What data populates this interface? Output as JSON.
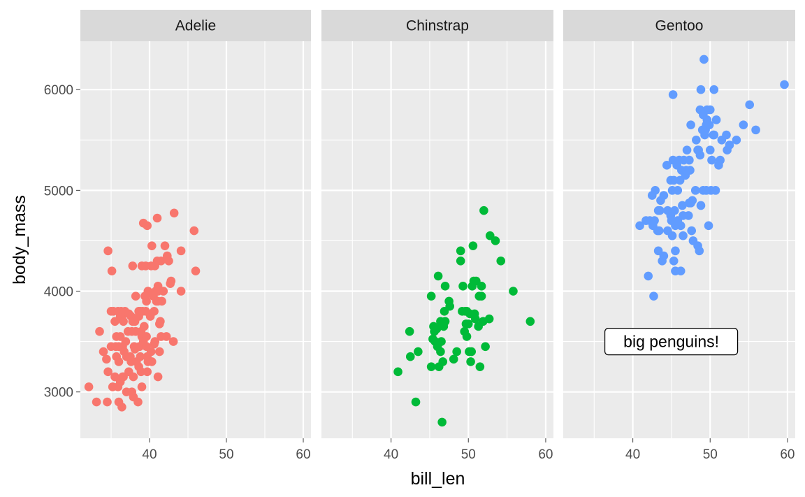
{
  "chart_data": {
    "type": "scatter",
    "xlabel": "bill_len",
    "ylabel": "body_mass",
    "xlim": [
      31,
      61
    ],
    "ylim": [
      2540,
      6480
    ],
    "x_ticks": [
      40,
      50,
      60
    ],
    "x_minor": [
      35,
      45,
      55
    ],
    "y_ticks": [
      3000,
      4000,
      5000,
      6000
    ],
    "y_minor": [
      3500,
      4500,
      5500
    ],
    "grid": true,
    "legend": "none",
    "colors": {
      "Adelie": "#f8766d",
      "Chinstrap": "#00ba38",
      "Gentoo": "#619cff"
    },
    "facets": [
      {
        "name": "Adelie",
        "points": [
          [
            32.1,
            3050
          ],
          [
            33.1,
            2900
          ],
          [
            33.5,
            3600
          ],
          [
            34.0,
            3400
          ],
          [
            34.4,
            3325
          ],
          [
            34.5,
            2900
          ],
          [
            34.6,
            3200
          ],
          [
            34.6,
            4400
          ],
          [
            35.0,
            3450
          ],
          [
            35.0,
            3800
          ],
          [
            35.1,
            4200
          ],
          [
            35.2,
            3050
          ],
          [
            35.3,
            3800
          ],
          [
            35.5,
            3700
          ],
          [
            35.5,
            3150
          ],
          [
            35.6,
            3450
          ],
          [
            35.7,
            3350
          ],
          [
            35.7,
            3550
          ],
          [
            35.9,
            3050
          ],
          [
            35.9,
            3800
          ],
          [
            36.0,
            3300
          ],
          [
            36.0,
            2900
          ],
          [
            36.0,
            3450
          ],
          [
            36.2,
            3100
          ],
          [
            36.2,
            3550
          ],
          [
            36.2,
            3750
          ],
          [
            36.3,
            3800
          ],
          [
            36.4,
            2850
          ],
          [
            36.4,
            3750
          ],
          [
            36.5,
            3150
          ],
          [
            36.5,
            3450
          ],
          [
            36.6,
            3150
          ],
          [
            36.7,
            3400
          ],
          [
            36.8,
            3800
          ],
          [
            36.9,
            3500
          ],
          [
            37.0,
            3000
          ],
          [
            37.0,
            3350
          ],
          [
            37.2,
            3600
          ],
          [
            37.3,
            3200
          ],
          [
            37.3,
            3775
          ],
          [
            37.6,
            3300
          ],
          [
            37.6,
            3750
          ],
          [
            37.7,
            3600
          ],
          [
            37.7,
            3000
          ],
          [
            37.8,
            3700
          ],
          [
            37.8,
            4250
          ],
          [
            37.9,
            3150
          ],
          [
            37.9,
            2950
          ],
          [
            38.1,
            3700
          ],
          [
            38.1,
            3425
          ],
          [
            38.2,
            3950
          ],
          [
            38.2,
            3600
          ],
          [
            38.3,
            3300
          ],
          [
            38.5,
            2900
          ],
          [
            38.6,
            3800
          ],
          [
            38.6,
            3750
          ],
          [
            38.6,
            3250
          ],
          [
            38.7,
            3450
          ],
          [
            38.8,
            3800
          ],
          [
            38.8,
            3350
          ],
          [
            38.9,
            3200
          ],
          [
            38.9,
            3600
          ],
          [
            39.0,
            3050
          ],
          [
            39.0,
            3550
          ],
          [
            39.0,
            4250
          ],
          [
            39.1,
            3800
          ],
          [
            39.2,
            4675
          ],
          [
            39.2,
            3500
          ],
          [
            39.3,
            3650
          ],
          [
            39.5,
            3800
          ],
          [
            39.5,
            4250
          ],
          [
            39.6,
            3550
          ],
          [
            39.6,
            3900
          ],
          [
            39.6,
            3450
          ],
          [
            39.7,
            4650
          ],
          [
            39.7,
            3200
          ],
          [
            39.7,
            3350
          ],
          [
            39.8,
            4000
          ],
          [
            39.8,
            3300
          ],
          [
            40.1,
            3750
          ],
          [
            40.2,
            3400
          ],
          [
            40.2,
            4250
          ],
          [
            40.3,
            3300
          ],
          [
            40.5,
            3950
          ],
          [
            40.6,
            3475
          ],
          [
            40.6,
            3800
          ],
          [
            40.7,
            3500
          ],
          [
            40.8,
            4000
          ],
          [
            40.9,
            3900
          ],
          [
            41.0,
            4300
          ],
          [
            41.1,
            3900
          ],
          [
            41.1,
            4000
          ],
          [
            41.1,
            3150
          ],
          [
            41.1,
            4050
          ],
          [
            41.3,
            3675
          ],
          [
            41.4,
            3700
          ],
          [
            41.5,
            4300
          ],
          [
            41.5,
            3550
          ],
          [
            41.6,
            3900
          ],
          [
            41.8,
            4000
          ],
          [
            42.0,
            4450
          ],
          [
            42.2,
            3550
          ],
          [
            42.3,
            4350
          ],
          [
            42.5,
            4300
          ],
          [
            42.8,
            4100
          ],
          [
            43.1,
            3500
          ],
          [
            43.2,
            4775
          ],
          [
            44.1,
            4000
          ],
          [
            44.1,
            4400
          ],
          [
            45.8,
            4600
          ],
          [
            46.0,
            4200
          ],
          [
            41.0,
            4725
          ],
          [
            40.3,
            4450
          ],
          [
            41.3,
            3400
          ],
          [
            38.0,
            3450
          ],
          [
            39.4,
            3950
          ],
          [
            36.6,
            3700
          ],
          [
            37.5,
            3350
          ],
          [
            42.7,
            4075
          ],
          [
            40.7,
            4250
          ]
        ]
      },
      {
        "name": "Chinstrap",
        "points": [
          [
            40.9,
            3200
          ],
          [
            42.4,
            3600
          ],
          [
            42.5,
            3350
          ],
          [
            43.2,
            2900
          ],
          [
            43.5,
            3400
          ],
          [
            45.2,
            3250
          ],
          [
            45.2,
            3950
          ],
          [
            45.4,
            3525
          ],
          [
            45.5,
            3650
          ],
          [
            45.6,
            3600
          ],
          [
            45.7,
            3500
          ],
          [
            45.9,
            3625
          ],
          [
            46.0,
            3450
          ],
          [
            46.1,
            4150
          ],
          [
            46.2,
            3250
          ],
          [
            46.4,
            3700
          ],
          [
            46.5,
            3500
          ],
          [
            46.6,
            2700
          ],
          [
            46.7,
            3300
          ],
          [
            46.8,
            3650
          ],
          [
            46.9,
            3800
          ],
          [
            47.0,
            3700
          ],
          [
            47.5,
            3900
          ],
          [
            47.6,
            3850
          ],
          [
            48.1,
            3325
          ],
          [
            48.5,
            3400
          ],
          [
            49.0,
            4300
          ],
          [
            49.0,
            4400
          ],
          [
            49.2,
            3800
          ],
          [
            49.3,
            4050
          ],
          [
            49.5,
            3600
          ],
          [
            49.6,
            3800
          ],
          [
            49.7,
            3675
          ],
          [
            49.8,
            3800
          ],
          [
            50.0,
            3675
          ],
          [
            50.1,
            3400
          ],
          [
            50.2,
            3775
          ],
          [
            50.3,
            3300
          ],
          [
            50.5,
            4050
          ],
          [
            50.6,
            4450
          ],
          [
            50.7,
            4100
          ],
          [
            50.8,
            3775
          ],
          [
            50.9,
            3725
          ],
          [
            51.0,
            4100
          ],
          [
            51.3,
            3650
          ],
          [
            51.4,
            3950
          ],
          [
            51.5,
            3250
          ],
          [
            51.7,
            3950
          ],
          [
            51.9,
            3700
          ],
          [
            52.0,
            4800
          ],
          [
            52.2,
            3450
          ],
          [
            52.7,
            3725
          ],
          [
            52.8,
            4550
          ],
          [
            53.5,
            4500
          ],
          [
            54.2,
            4300
          ],
          [
            55.8,
            4000
          ],
          [
            58.0,
            3700
          ],
          [
            50.4,
            3400
          ],
          [
            49.8,
            3550
          ],
          [
            46.4,
            3400
          ],
          [
            47.0,
            4050
          ],
          [
            51.7,
            4050
          ]
        ]
      },
      {
        "name": "Gentoo",
        "points": [
          [
            40.9,
            4650
          ],
          [
            41.7,
            4700
          ],
          [
            42.0,
            4150
          ],
          [
            42.2,
            4700
          ],
          [
            42.5,
            4950
          ],
          [
            42.6,
            4650
          ],
          [
            42.7,
            3950
          ],
          [
            42.8,
            4700
          ],
          [
            42.9,
            5000
          ],
          [
            43.2,
            4600
          ],
          [
            43.3,
            4400
          ],
          [
            43.4,
            4600
          ],
          [
            43.5,
            4800
          ],
          [
            43.6,
            4900
          ],
          [
            43.8,
            4300
          ],
          [
            44.0,
            4350
          ],
          [
            44.4,
            5250
          ],
          [
            44.5,
            4600
          ],
          [
            44.9,
            4750
          ],
          [
            45.0,
            4700
          ],
          [
            45.1,
            5000
          ],
          [
            45.2,
            5300
          ],
          [
            45.2,
            5950
          ],
          [
            45.3,
            4300
          ],
          [
            45.4,
            4800
          ],
          [
            45.5,
            4400
          ],
          [
            45.5,
            4650
          ],
          [
            45.5,
            4200
          ],
          [
            45.7,
            5250
          ],
          [
            45.8,
            4700
          ],
          [
            46.1,
            5100
          ],
          [
            46.2,
            4650
          ],
          [
            46.3,
            5200
          ],
          [
            46.4,
            4850
          ],
          [
            46.5,
            4550
          ],
          [
            46.6,
            5300
          ],
          [
            46.8,
            5150
          ],
          [
            46.9,
            5200
          ],
          [
            47.2,
            4750
          ],
          [
            47.3,
            4875
          ],
          [
            47.4,
            5200
          ],
          [
            47.5,
            4875
          ],
          [
            47.6,
            4600
          ],
          [
            47.7,
            4900
          ],
          [
            47.8,
            4500
          ],
          [
            48.1,
            5000
          ],
          [
            48.2,
            5500
          ],
          [
            48.4,
            5400
          ],
          [
            48.5,
            5400
          ],
          [
            48.6,
            4400
          ],
          [
            48.7,
            5350
          ],
          [
            48.8,
            4850
          ],
          [
            49.0,
            5600
          ],
          [
            49.1,
            5000
          ],
          [
            49.2,
            6300
          ],
          [
            49.3,
            5550
          ],
          [
            49.4,
            5600
          ],
          [
            49.5,
            5650
          ],
          [
            49.6,
            5700
          ],
          [
            49.8,
            4650
          ],
          [
            50.0,
            5400
          ],
          [
            50.1,
            5000
          ],
          [
            50.2,
            5300
          ],
          [
            50.4,
            5550
          ],
          [
            50.5,
            5550
          ],
          [
            50.7,
            5000
          ],
          [
            50.8,
            5700
          ],
          [
            51.1,
            5250
          ],
          [
            51.3,
            5300
          ],
          [
            51.5,
            5500
          ],
          [
            52.1,
            5550
          ],
          [
            52.2,
            5400
          ],
          [
            52.5,
            5450
          ],
          [
            53.4,
            5500
          ],
          [
            54.3,
            5650
          ],
          [
            55.1,
            5850
          ],
          [
            55.9,
            5600
          ],
          [
            59.6,
            6050
          ],
          [
            48.8,
            6000
          ],
          [
            49.6,
            5800
          ],
          [
            47.0,
            5400
          ],
          [
            46.5,
            4750
          ],
          [
            45.8,
            5000
          ],
          [
            44.9,
            5100
          ],
          [
            44.5,
            4800
          ],
          [
            44.0,
            4950
          ],
          [
            47.3,
            5300
          ],
          [
            48.4,
            4450
          ],
          [
            49.9,
            5650
          ],
          [
            50.5,
            6000
          ],
          [
            46.2,
            4200
          ],
          [
            45.1,
            4550
          ],
          [
            43.3,
            4800
          ],
          [
            47.5,
            5650
          ],
          [
            48.7,
            5800
          ],
          [
            49.1,
            5750
          ],
          [
            50.0,
            5800
          ],
          [
            49.5,
            5000
          ],
          [
            45.3,
            5100
          ],
          [
            46.0,
            5300
          ]
        ]
      }
    ],
    "annotations": [
      {
        "facet": "Gentoo",
        "text": "big penguins!",
        "x": 40,
        "y": 3500
      }
    ]
  }
}
